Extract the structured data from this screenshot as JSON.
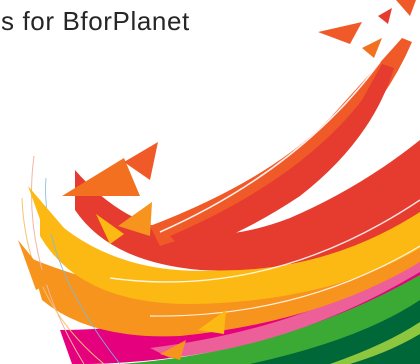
{
  "headline": {
    "text": "es for BforPlanet"
  },
  "artwork": {
    "icon": "colorful-swoosh-illustration",
    "palette": {
      "red": "#e63c2f",
      "orange_red": "#f05a28",
      "orange": "#f7941d",
      "yellow": "#fdb913",
      "magenta": "#e5007e",
      "pink": "#ec5f98",
      "green": "#3aaa35",
      "light_green": "#8dc63f",
      "dark_green": "#006838",
      "white": "#ffffff"
    }
  }
}
